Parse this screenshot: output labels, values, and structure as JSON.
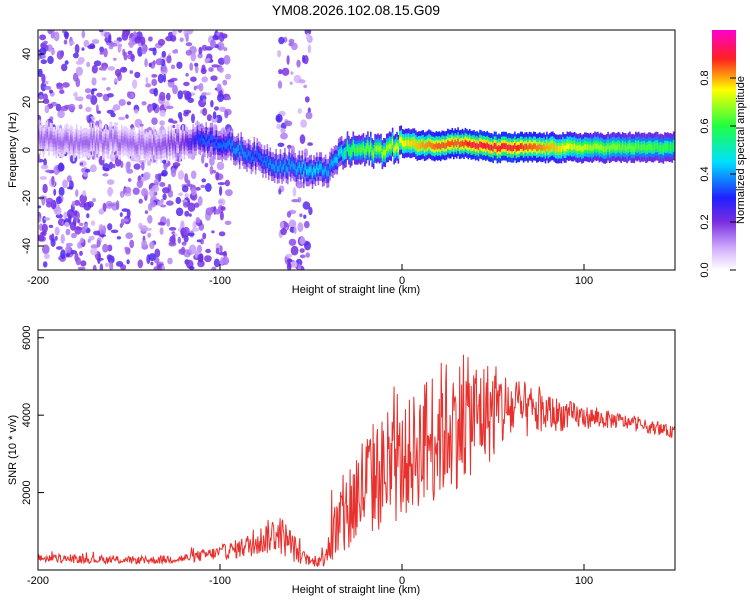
{
  "title": "YM08.2026.102.08.15.G09",
  "colors": {
    "signal": "#e8302c",
    "scatter": "#7a2fe0",
    "axis": "#000000"
  },
  "chart_data": [
    {
      "type": "heatmap",
      "name": "spectrogram",
      "xlabel": "Height of straight line (km)",
      "ylabel": "Frequency (Hz)",
      "xlim": [
        -200,
        150
      ],
      "ylim": [
        -50,
        50
      ],
      "xticks": [
        -200,
        -100,
        0,
        100
      ],
      "yticks": [
        -40,
        -20,
        0,
        20,
        40
      ],
      "colorbar": {
        "label": "Normalized spectral amplitude",
        "ticks": [
          0.0,
          0.2,
          0.4,
          0.6,
          0.8
        ],
        "range": [
          0,
          1
        ],
        "colormap": "rainbow"
      },
      "ridge": {
        "x": [
          -200,
          -180,
          -160,
          -140,
          -120,
          -110,
          -100,
          -90,
          -80,
          -70,
          -60,
          -50,
          -40,
          -35,
          -30,
          -20,
          -10,
          0,
          10,
          20,
          30,
          40,
          50,
          60,
          70,
          80,
          90,
          100,
          120,
          150
        ],
        "freq": [
          5,
          3,
          4,
          2,
          3,
          5,
          3,
          0,
          -3,
          -6,
          -7,
          -9,
          -8,
          -2,
          0,
          0,
          0,
          3,
          2,
          2,
          3,
          2,
          1,
          1,
          1,
          1,
          1,
          1,
          1,
          1
        ],
        "amplitude": [
          0.15,
          0.15,
          0.15,
          0.15,
          0.2,
          0.35,
          0.35,
          0.4,
          0.35,
          0.4,
          0.4,
          0.45,
          0.4,
          0.45,
          0.6,
          0.65,
          0.7,
          0.75,
          0.8,
          0.85,
          0.85,
          0.9,
          0.9,
          0.9,
          0.85,
          0.8,
          0.75,
          0.7,
          0.65,
          0.6
        ]
      }
    },
    {
      "type": "line",
      "name": "snr",
      "xlabel": "Height of straight line (km)",
      "ylabel": "SNR (10 * v/v)",
      "xlim": [
        -200,
        150
      ],
      "ylim": [
        0,
        6200
      ],
      "xticks": [
        -200,
        -100,
        0,
        100
      ],
      "yticks": [
        2000,
        4000,
        6000
      ],
      "series": [
        {
          "name": "SNR",
          "x": [
            -200,
            -180,
            -160,
            -140,
            -120,
            -100,
            -90,
            -80,
            -70,
            -65,
            -60,
            -55,
            -50,
            -45,
            -40,
            -35,
            -30,
            -25,
            -20,
            -15,
            -10,
            -5,
            0,
            5,
            10,
            15,
            20,
            25,
            30,
            35,
            40,
            45,
            50,
            55,
            60,
            70,
            80,
            90,
            100,
            110,
            120,
            130,
            140,
            150
          ],
          "y": [
            300,
            280,
            260,
            250,
            300,
            450,
            550,
            700,
            950,
            850,
            600,
            350,
            200,
            250,
            700,
            1100,
            1500,
            1900,
            2200,
            2400,
            2500,
            2600,
            2700,
            3000,
            3200,
            3400,
            3600,
            3700,
            3800,
            3900,
            4000,
            4050,
            4100,
            4150,
            4150,
            4100,
            4050,
            4000,
            3950,
            3900,
            3850,
            3750,
            3650,
            3550
          ],
          "noise": [
            100,
            100,
            100,
            100,
            120,
            180,
            250,
            350,
            500,
            500,
            400,
            200,
            100,
            200,
            600,
            1000,
            1300,
            1400,
            1500,
            1500,
            1500,
            1500,
            1400,
            1500,
            1600,
            1800,
            1800,
            1800,
            1700,
            1600,
            1500,
            1400,
            1300,
            1100,
            900,
            700,
            500,
            400,
            300,
            250,
            200,
            180,
            160,
            150
          ]
        }
      ]
    }
  ]
}
